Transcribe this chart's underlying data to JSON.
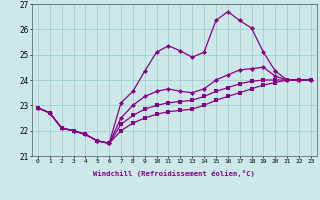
{
  "xlabel": "Windchill (Refroidissement éolien,°C)",
  "x_hours": [
    0,
    1,
    2,
    3,
    4,
    5,
    6,
    7,
    8,
    9,
    10,
    11,
    12,
    13,
    14,
    15,
    16,
    17,
    18,
    19,
    20,
    21,
    22,
    23
  ],
  "line_main": [
    22.9,
    22.7,
    22.1,
    22.0,
    21.85,
    21.6,
    21.5,
    23.1,
    23.55,
    24.35,
    25.1,
    25.35,
    25.15,
    24.9,
    25.1,
    26.35,
    26.7,
    26.35,
    26.05,
    25.1,
    24.35,
    24.0,
    24.0,
    24.0
  ],
  "line_upper": [
    22.9,
    22.7,
    22.1,
    22.0,
    21.85,
    21.6,
    21.5,
    22.5,
    23.0,
    23.35,
    23.55,
    23.65,
    23.55,
    23.5,
    23.65,
    24.0,
    24.2,
    24.4,
    24.45,
    24.5,
    24.15,
    24.0,
    24.0,
    24.0
  ],
  "line_mid": [
    22.9,
    22.7,
    22.1,
    22.0,
    21.85,
    21.6,
    21.5,
    22.25,
    22.6,
    22.85,
    23.0,
    23.1,
    23.15,
    23.2,
    23.35,
    23.55,
    23.7,
    23.85,
    23.95,
    24.0,
    24.0,
    24.0,
    24.0,
    24.0
  ],
  "line_lower": [
    22.9,
    22.7,
    22.1,
    22.0,
    21.85,
    21.6,
    21.5,
    22.0,
    22.3,
    22.5,
    22.65,
    22.75,
    22.8,
    22.85,
    23.0,
    23.2,
    23.35,
    23.5,
    23.65,
    23.8,
    23.9,
    24.0,
    24.0,
    24.0
  ],
  "line_color": "#880088",
  "bg_color": "#cce8e8",
  "grid_color": "#99cccc",
  "ylim": [
    21.0,
    27.0
  ],
  "yticks": [
    21,
    22,
    23,
    24,
    25,
    26,
    27
  ],
  "xticks": [
    0,
    1,
    2,
    3,
    4,
    5,
    6,
    7,
    8,
    9,
    10,
    11,
    12,
    13,
    14,
    15,
    16,
    17,
    18,
    19,
    20,
    21,
    22,
    23
  ]
}
